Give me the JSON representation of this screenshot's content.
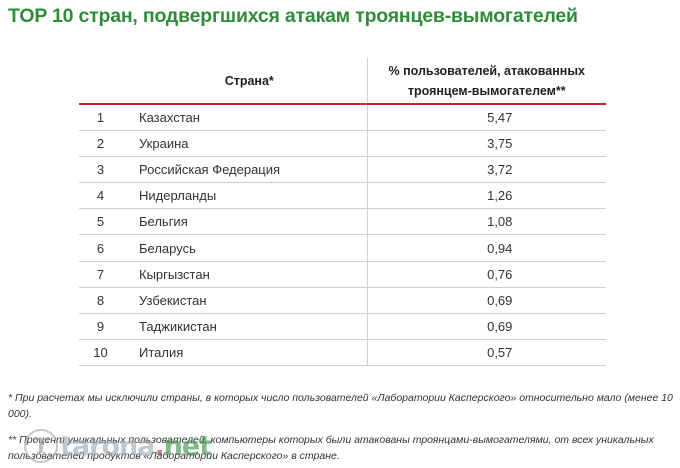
{
  "title": "TOP 10 стран, подвергшихся атакам троянцев-вымогателей",
  "table": {
    "headers": {
      "country": "Страна*",
      "value": "% пользователей, атакованных троянцем-вымогателем**"
    },
    "rows": [
      {
        "rank": "1",
        "country": "Казахстан",
        "value": "5,47"
      },
      {
        "rank": "2",
        "country": "Украина",
        "value": "3,75"
      },
      {
        "rank": "3",
        "country": "Российская Федерация",
        "value": "3,72"
      },
      {
        "rank": "4",
        "country": "Нидерланды",
        "value": "1,26"
      },
      {
        "rank": "5",
        "country": "Бельгия",
        "value": "1,08"
      },
      {
        "rank": "6",
        "country": "Беларусь",
        "value": "0,94"
      },
      {
        "rank": "7",
        "country": "Кыргызстан",
        "value": "0,76"
      },
      {
        "rank": "8",
        "country": "Узбекистан",
        "value": "0,69"
      },
      {
        "rank": "9",
        "country": "Таджикистан",
        "value": "0,69"
      },
      {
        "rank": "10",
        "country": "Италия",
        "value": "0,57"
      }
    ]
  },
  "footnotes": {
    "note1": "* При расчетах мы исключили страны, в которых число пользователей «Лаборатории Касперского» относительно мало (менее 10 000).",
    "note2": "** Процент уникальных пользователей, компьютеры которых были атакованы троянцами-вымогателями, от всех уникальных пользователей продуктов «Лаборатории Касперского» в стране."
  },
  "watermark": {
    "letter": "T",
    "name": "tarona",
    "dot": ".",
    "tld": "net"
  }
}
